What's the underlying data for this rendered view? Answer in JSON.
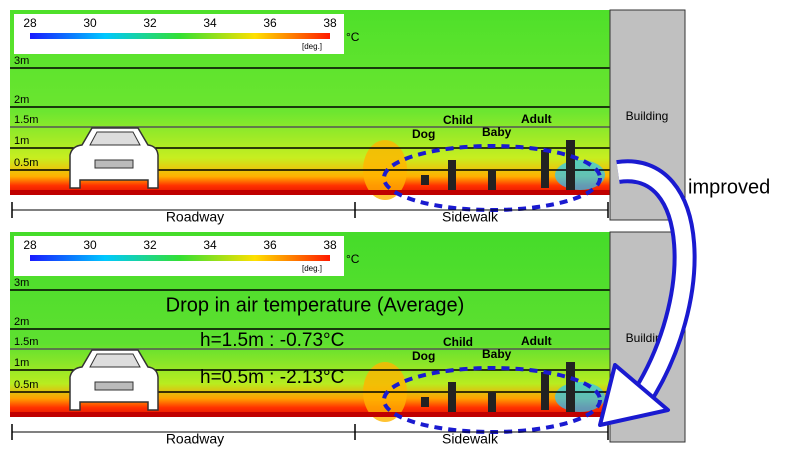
{
  "colorbar": {
    "ticks": [
      28,
      30,
      32,
      34,
      36,
      38
    ],
    "unit": "°C",
    "label": "[deg.]"
  },
  "heights": [
    "3m",
    "2m",
    "1.5m",
    "1m",
    "0.5m"
  ],
  "people": [
    "Dog",
    "Child",
    "Baby",
    "Adult"
  ],
  "building": "Building",
  "zones": [
    "Roadway",
    "Sidewalk"
  ],
  "result": {
    "title": "Drop in air temperature (Average)",
    "lines": [
      "h=1.5m : -0.73°C",
      "h=0.5m : -2.13°C"
    ]
  },
  "arrow_label": "improved"
}
